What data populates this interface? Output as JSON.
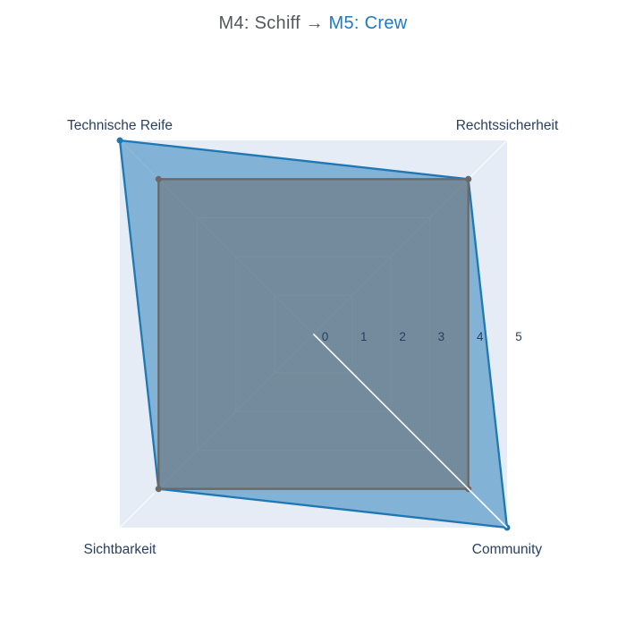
{
  "title": {
    "source": "M4: Schiff",
    "arrow": "→",
    "target": "M5: Crew",
    "source_color": "#54585c",
    "target_color": "#1f7ac0"
  },
  "chart_data": {
    "type": "radar",
    "title": "M4: Schiff → M5: Crew",
    "categories": [
      "Technische Reife",
      "Rechtssicherheit",
      "Community",
      "Sichtbarkeit"
    ],
    "angles_deg": [
      135,
      45,
      315,
      225
    ],
    "series": [
      {
        "name": "M4: Schiff",
        "values": [
          4,
          4,
          4,
          4
        ],
        "line_color": "#696969",
        "fill_color": "rgba(99,99,99,0.5)",
        "z": 2
      },
      {
        "name": "M5: Crew",
        "values": [
          5,
          4,
          5,
          4
        ],
        "line_color": "#1f77b4",
        "fill_color": "rgba(31,119,180,0.5)",
        "z": 1
      }
    ],
    "radial_ticks": [
      "0",
      "1",
      "2",
      "3",
      "4",
      "5"
    ],
    "r_max": 5,
    "grid_shape": "linear",
    "legend": "none",
    "highlight_axis": "Community",
    "background_color": "#e5ecf6",
    "grid_color": "#ffffff",
    "tick_color": "#2a3f5f",
    "label_color": "#2a3f5f"
  }
}
